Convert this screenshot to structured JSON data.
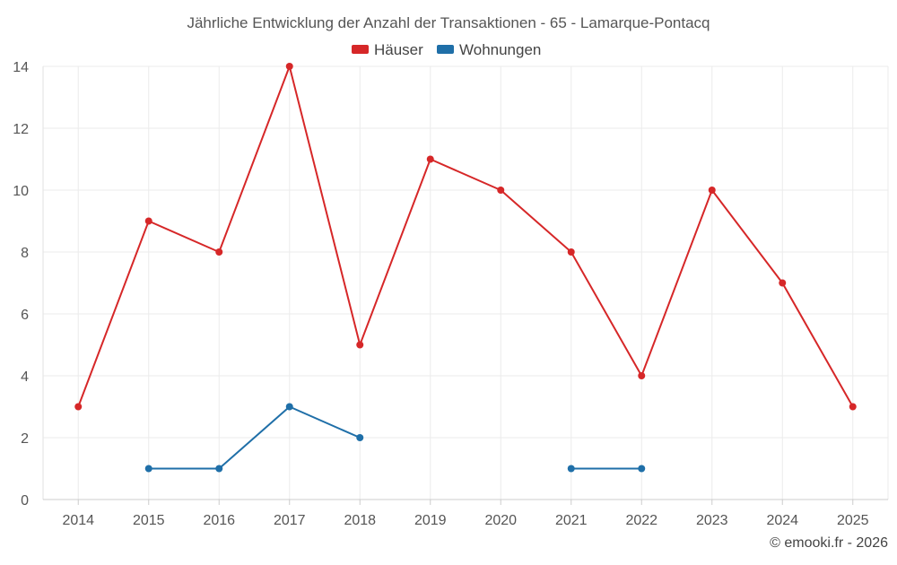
{
  "chart_data": {
    "type": "line",
    "title": "Jährliche Entwicklung der Anzahl der Transaktionen - 65 - Lamarque-Pontacq",
    "xlabel": "",
    "ylabel": "",
    "categories": [
      "2014",
      "2015",
      "2016",
      "2017",
      "2018",
      "2019",
      "2020",
      "2021",
      "2022",
      "2023",
      "2024",
      "2025"
    ],
    "ylim": [
      0,
      14
    ],
    "yticks": [
      0,
      2,
      4,
      6,
      8,
      10,
      12,
      14
    ],
    "grid": true,
    "legend_position": "top-center",
    "series": [
      {
        "name": "Häuser",
        "color": "#d62728",
        "values": [
          3,
          9,
          8,
          14,
          5,
          11,
          10,
          8,
          4,
          10,
          7,
          3
        ]
      },
      {
        "name": "Wohnungen",
        "color": "#1f6fa8",
        "values": [
          null,
          1,
          1,
          3,
          2,
          null,
          null,
          1,
          1,
          null,
          null,
          null
        ]
      }
    ]
  },
  "footer": {
    "credit": "© emooki.fr - 2026"
  }
}
